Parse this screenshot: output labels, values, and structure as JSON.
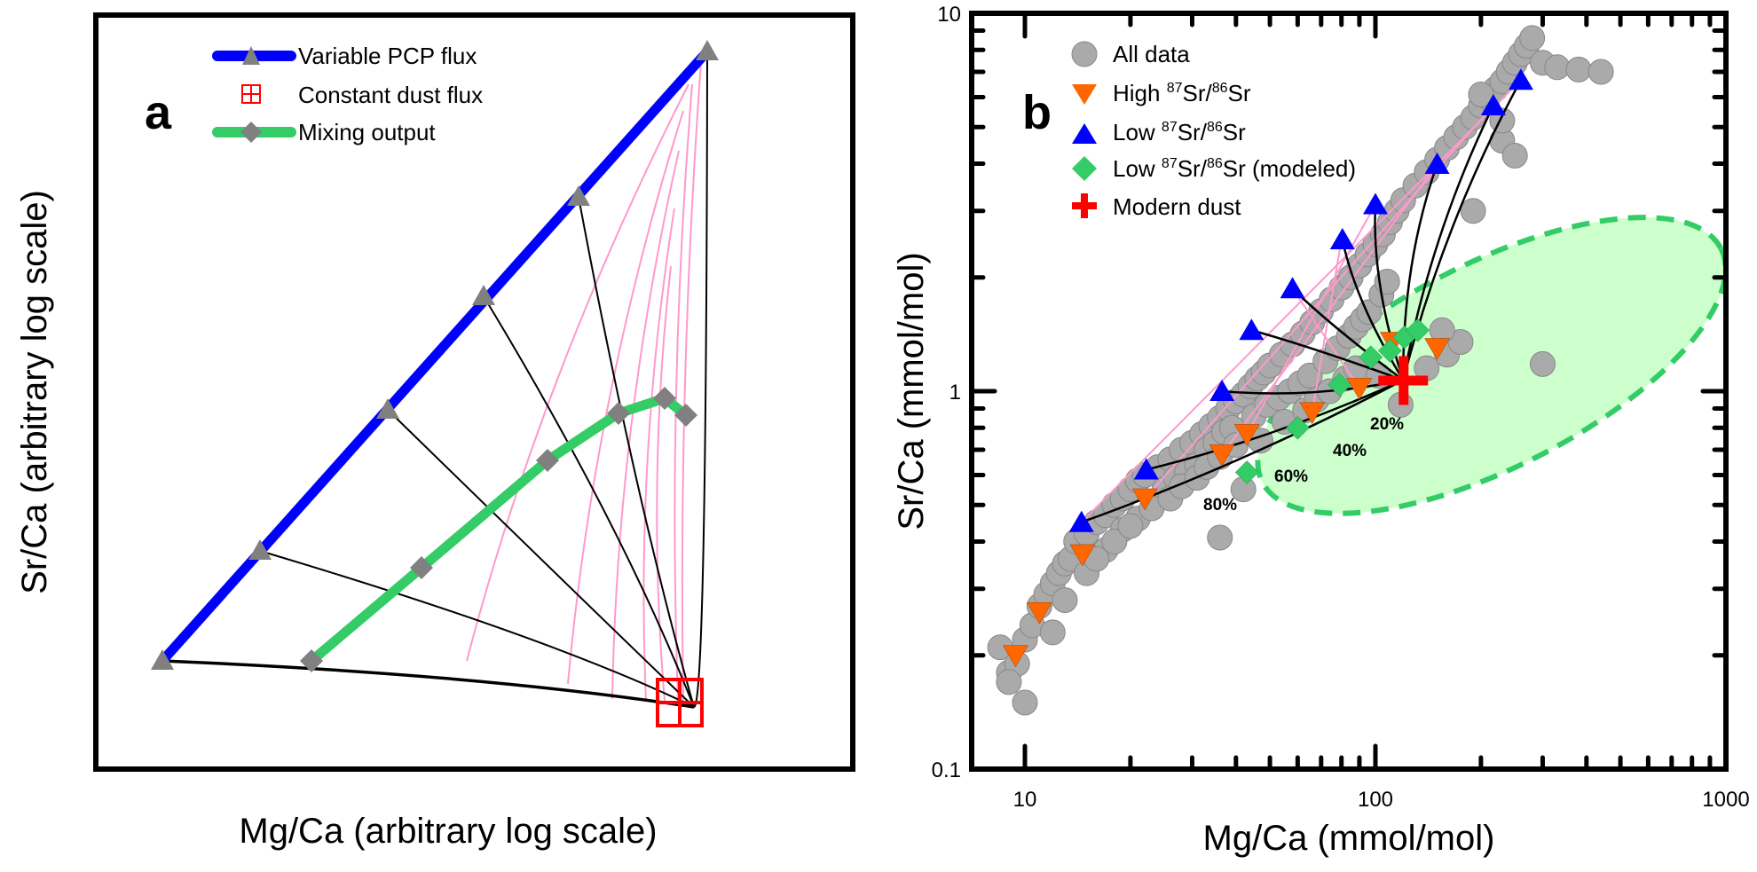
{
  "chart_data": [
    {
      "panel": "a",
      "type": "line",
      "panel_label": "a",
      "xlabel": "Mg/Ca (arbitrary log scale)",
      "ylabel": "Sr/Ca (arbitrary log scale)",
      "axis_scale": "arbitrary log (no ticks)",
      "legend": {
        "placement": "top-left",
        "entries": [
          {
            "label": "Variable PCP flux",
            "style": "blue thick line with grey triangle",
            "color": "#0000ff"
          },
          {
            "label": "Constant dust flux",
            "style": "red boxed cross square",
            "color": "#ff0000"
          },
          {
            "label": "Mixing output",
            "style": "green thick line with grey diamond",
            "color": "#33cc66"
          }
        ]
      },
      "units_note": "normalized 0-1 coordinates within plot area (arbitrary log space)",
      "pcp_flux_line": {
        "x": [
          0.07,
          0.24,
          0.43,
          0.61,
          0.79,
          1.0
        ],
        "y": [
          0.16,
          0.31,
          0.49,
          0.64,
          0.8,
          0.96
        ]
      },
      "dust_flux_point": {
        "x": 0.965,
        "y": 0.09
      },
      "mixing_output": {
        "x": [
          0.34,
          0.54,
          0.72,
          0.87,
          0.935,
          0.97
        ],
        "y": [
          0.16,
          0.28,
          0.41,
          0.49,
          0.505,
          0.48
        ]
      },
      "pink_isolines_count": 7
    },
    {
      "panel": "b",
      "type": "scatter",
      "panel_label": "b",
      "xlabel": "Mg/Ca (mmol/mol)",
      "ylabel": "Sr/Ca (mmol/mol)",
      "xscale": "log",
      "yscale": "log",
      "xlim": [
        8,
        1000
      ],
      "ylim": [
        0.1,
        10
      ],
      "xticks": [
        "10",
        "100",
        "1000"
      ],
      "yticks": [
        "0.1",
        "1",
        "10"
      ],
      "legend": {
        "placement": "top-left",
        "entries": [
          {
            "label_main": "All data",
            "marker": "circle",
            "color": "#aaaaaa"
          },
          {
            "label_pre": "High ",
            "sup1": "87",
            "mid": "Sr/",
            "sup2": "86",
            "label_post": "Sr",
            "marker": "triangle-down",
            "color": "#ff6600"
          },
          {
            "label_pre": "Low ",
            "sup1": "87",
            "mid": "Sr/",
            "sup2": "86",
            "label_post": "Sr",
            "marker": "triangle-up",
            "color": "#0000ff"
          },
          {
            "label_pre": "Low ",
            "sup1": "87",
            "mid": "Sr/",
            "sup2": "86",
            "label_post": "Sr (modeled)",
            "marker": "diamond",
            "color": "#33cc66"
          },
          {
            "label_main": "Modern dust",
            "marker": "cross",
            "color": "#ff0000"
          }
        ]
      },
      "series": [
        {
          "name": "Low 87Sr/86Sr",
          "marker": "triangle-up",
          "color": "#0000ff",
          "x": [
            14.5,
            22.2,
            36.5,
            44.3,
            58,
            80.5,
            100,
            150,
            217,
            260
          ],
          "y": [
            0.45,
            0.62,
            1.0,
            1.45,
            1.87,
            2.52,
            3.12,
            3.99,
            5.7,
            6.66
          ]
        },
        {
          "name": "High 87Sr/86Sr",
          "marker": "triangle-down",
          "color": "#ff6600",
          "x": [
            9.4,
            11,
            14.6,
            22,
            36.5,
            43,
            66,
            90,
            112,
            150
          ],
          "y": [
            0.2,
            0.26,
            0.37,
            0.52,
            0.68,
            0.77,
            0.88,
            1.02,
            1.35,
            1.3
          ]
        },
        {
          "name": "Low 87Sr/86Sr (modeled)",
          "marker": "diamond",
          "color": "#33cc66",
          "x": [
            43,
            60,
            79,
            97,
            110,
            121,
            132
          ],
          "y": [
            0.61,
            0.8,
            1.04,
            1.23,
            1.28,
            1.39,
            1.45
          ]
        },
        {
          "name": "Modern dust",
          "marker": "cross",
          "color": "#ff0000",
          "x": [
            120
          ],
          "y": [
            1.07
          ]
        },
        {
          "name": "All data",
          "marker": "circle",
          "color": "#aaaaaa",
          "x": [
            8.5,
            9,
            9.5,
            10,
            10.5,
            11,
            11.5,
            12,
            12.5,
            13,
            13.5,
            14,
            15,
            16,
            17,
            18,
            19,
            20,
            21,
            22,
            24,
            26,
            28,
            30,
            32,
            34,
            36,
            38,
            40,
            42,
            44,
            46,
            48,
            50,
            54,
            58,
            62,
            66,
            70,
            75,
            80,
            85,
            90,
            95,
            100,
            105,
            110,
            115,
            120,
            130,
            140,
            150,
            160,
            170,
            180,
            190,
            200,
            210,
            220,
            230,
            240,
            250,
            260,
            270,
            280,
            300,
            330,
            380,
            440,
            230,
            190,
            300,
            250,
            200,
            12,
            13,
            15,
            17,
            19,
            21,
            25,
            27,
            29,
            31,
            33,
            35,
            37,
            39,
            45,
            49,
            53,
            57,
            61,
            65,
            72,
            78,
            84,
            88,
            92,
            96,
            104,
            108,
            160,
            175,
            16,
            18,
            20,
            23,
            26,
            28,
            31,
            33,
            36,
            40,
            47,
            55,
            63,
            68,
            74,
            82,
            88,
            102,
            118,
            140,
            155,
            230,
            9,
            10,
            36,
            42
          ],
          "y": [
            0.21,
            0.18,
            0.19,
            0.22,
            0.24,
            0.27,
            0.29,
            0.31,
            0.33,
            0.35,
            0.36,
            0.4,
            0.42,
            0.45,
            0.47,
            0.5,
            0.52,
            0.55,
            0.58,
            0.6,
            0.63,
            0.66,
            0.7,
            0.73,
            0.77,
            0.81,
            0.85,
            0.9,
            0.94,
            0.98,
            1.03,
            1.08,
            1.12,
            1.17,
            1.25,
            1.33,
            1.42,
            1.52,
            1.63,
            1.75,
            1.88,
            2.0,
            2.15,
            2.3,
            2.45,
            2.6,
            2.8,
            3.0,
            3.2,
            3.5,
            3.8,
            4.1,
            4.4,
            4.7,
            5.0,
            5.3,
            5.7,
            6.0,
            6.3,
            6.6,
            7.0,
            7.4,
            7.8,
            8.2,
            8.6,
            7.4,
            7.2,
            7.1,
            7.0,
            4.6,
            3.0,
            1.18,
            4.2,
            6.1,
            0.23,
            0.28,
            0.33,
            0.38,
            0.43,
            0.46,
            0.55,
            0.59,
            0.61,
            0.64,
            0.7,
            0.73,
            0.78,
            0.8,
            0.86,
            0.92,
            0.96,
            1.0,
            1.05,
            1.1,
            1.2,
            1.3,
            1.4,
            1.48,
            1.55,
            1.62,
            1.8,
            1.95,
            1.25,
            1.35,
            0.36,
            0.4,
            0.44,
            0.49,
            0.52,
            0.56,
            0.59,
            0.63,
            0.67,
            0.72,
            0.74,
            0.83,
            0.89,
            0.95,
            1.0,
            1.08,
            1.15,
            1.1,
            0.92,
            1.15,
            1.45,
            5.2,
            0.17,
            0.15,
            0.41,
            0.55
          ]
        }
      ],
      "mixing_percent_labels": [
        "20%",
        "40%",
        "60%",
        "80%"
      ],
      "dust_region": {
        "shape": "dashed ellipse",
        "fill": "#ccffcc",
        "stroke": "#33cc66",
        "center": {
          "x": 170,
          "y": 1.05
        },
        "approx_extent_x": [
          45,
          420
        ],
        "approx_extent_y": [
          0.55,
          2.0
        ]
      }
    }
  ]
}
